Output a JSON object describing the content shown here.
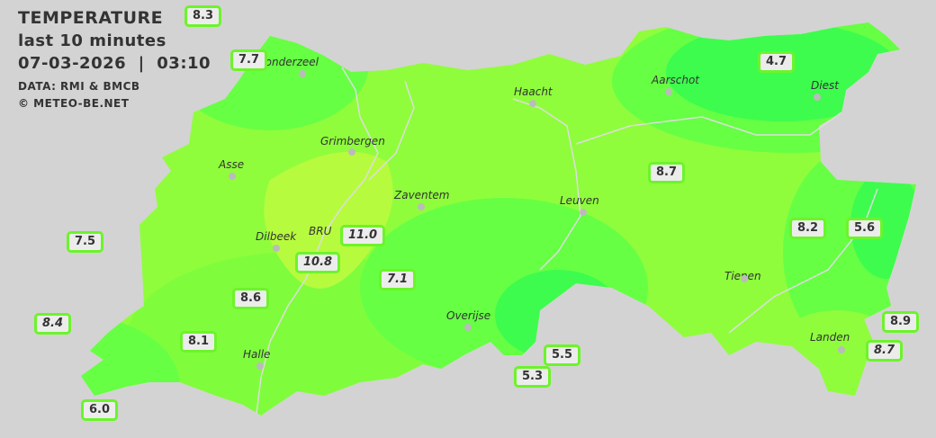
{
  "header": {
    "title": "TEMPERATURE",
    "subtitle": "last 10 minutes",
    "datetime": "07-03-2026  |  03:10",
    "source": "DATA: RMI & BMCB",
    "copyright": "© METEO-BE.NET"
  },
  "colors": {
    "background": "#d3d3d3",
    "label_border": "#6cf42a",
    "cold": "#3dfc4e",
    "mid": "#66ff44",
    "mild": "#8ffd3c",
    "warm": "#b7fb3e"
  },
  "cities": [
    {
      "name": "Londerzeel"
    },
    {
      "name": "Haacht"
    },
    {
      "name": "Aarschot"
    },
    {
      "name": "Diest"
    },
    {
      "name": "Grimbergen"
    },
    {
      "name": "Asse"
    },
    {
      "name": "Zaventem"
    },
    {
      "name": "Leuven"
    },
    {
      "name": "Dilbeek"
    },
    {
      "name": "BRU"
    },
    {
      "name": "Tienen"
    },
    {
      "name": "Overijse"
    },
    {
      "name": "Halle"
    },
    {
      "name": "Landen"
    }
  ],
  "stations": [
    {
      "value": "8.3",
      "italic": false
    },
    {
      "value": "7.7",
      "italic": false
    },
    {
      "value": "4.7",
      "italic": false
    },
    {
      "value": "8.7",
      "italic": false
    },
    {
      "value": "8.2",
      "italic": false
    },
    {
      "value": "5.6",
      "italic": false
    },
    {
      "value": "7.5",
      "italic": false
    },
    {
      "value": "10.8",
      "italic": true
    },
    {
      "value": "11.0",
      "italic": true
    },
    {
      "value": "7.1",
      "italic": true
    },
    {
      "value": "8.6",
      "italic": false
    },
    {
      "value": "8.4",
      "italic": true
    },
    {
      "value": "8.1",
      "italic": false
    },
    {
      "value": "6.0",
      "italic": false
    },
    {
      "value": "5.5",
      "italic": false
    },
    {
      "value": "5.3",
      "italic": false
    },
    {
      "value": "8.9",
      "italic": false
    },
    {
      "value": "8.7",
      "italic": true
    }
  ]
}
